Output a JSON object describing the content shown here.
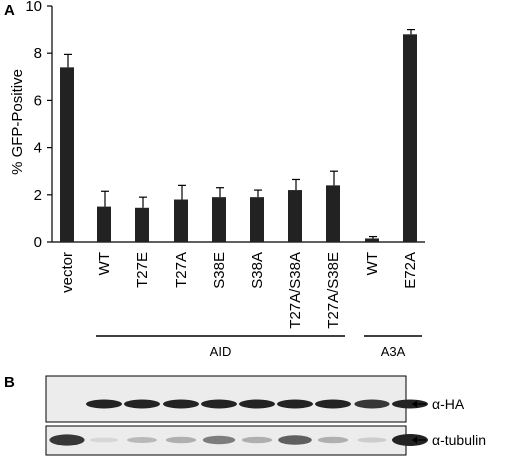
{
  "panels": {
    "a": "A",
    "b": "B"
  },
  "chart_data": {
    "type": "bar",
    "ylabel": "% GFP-Positive",
    "xlabel": "",
    "ylim": [
      0,
      10
    ],
    "yticks": [
      0,
      2,
      4,
      6,
      8,
      10
    ],
    "grid": false,
    "categories": [
      "vector",
      "WT",
      "T27E",
      "T27A",
      "S38E",
      "S38A",
      "T27A/S38A",
      "T27A/S38E",
      "WT",
      "E72A"
    ],
    "values": [
      7.4,
      1.5,
      1.45,
      1.8,
      1.9,
      1.9,
      2.2,
      2.4,
      0.15,
      8.8
    ],
    "errors": [
      0.55,
      0.65,
      0.45,
      0.6,
      0.4,
      0.3,
      0.45,
      0.6,
      0.08,
      0.2
    ],
    "bar_color": "#222222",
    "groups": [
      {
        "label": "AID",
        "from": 1,
        "to": 7
      },
      {
        "label": "A3A",
        "from": 8,
        "to": 9
      }
    ]
  },
  "blot": {
    "bands": [
      {
        "label": "α-HA",
        "intensity": [
          0,
          1,
          1,
          1,
          1,
          1,
          1,
          1,
          0.9,
          1
        ]
      },
      {
        "label": "α-tubulin",
        "intensity": [
          0.9,
          0.1,
          0.25,
          0.3,
          0.55,
          0.3,
          0.7,
          0.3,
          0.15,
          1
        ]
      }
    ]
  }
}
